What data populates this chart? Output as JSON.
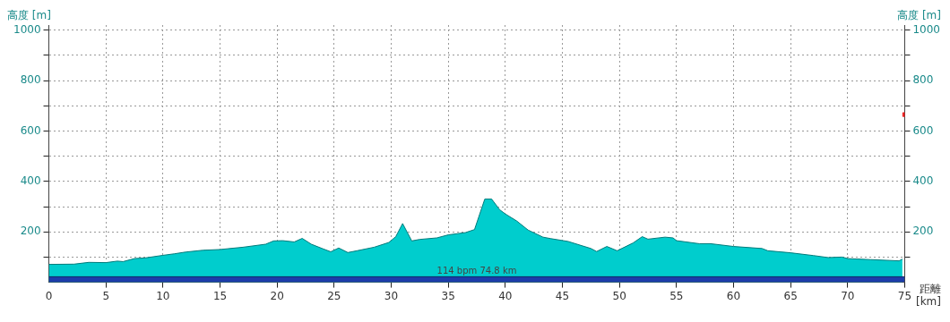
{
  "chart_data": {
    "type": "area",
    "xlabel": "距離 [km]",
    "ylabel": "高度 [m]",
    "y2label": "高度 [m]",
    "annotations": [
      "114 bpm 74.8 km"
    ],
    "xlim": [
      0,
      75
    ],
    "xticks": [
      0,
      5,
      10,
      15,
      20,
      25,
      30,
      35,
      40,
      45,
      50,
      55,
      60,
      65,
      70,
      75
    ],
    "ylim": [
      0,
      1020
    ],
    "yticks": [
      {
        "value": 0,
        "label": null
      },
      {
        "value": 100,
        "label": null
      },
      200,
      {
        "value": 300,
        "label": null
      },
      400,
      {
        "value": 500,
        "label": null
      },
      600,
      {
        "value": 700,
        "label": null
      },
      800,
      {
        "value": 900,
        "label": null
      },
      1000
    ],
    "y2lim": [
      0,
      1020
    ],
    "y2ticks": [
      {
        "value": 0,
        "label": null
      },
      {
        "value": 100,
        "label": null
      },
      200,
      {
        "value": 300,
        "label": null
      },
      400,
      {
        "value": 500,
        "label": null
      },
      600,
      {
        "value": 700,
        "label": null
      },
      800,
      {
        "value": 900,
        "label": null
      },
      1000
    ],
    "grid": true,
    "series": [
      {
        "color": "#00cdcd",
        "x": [
          0,
          2.2,
          3.5,
          5,
          6,
          6.5,
          7.5,
          8.5,
          10,
          11,
          12,
          13.5,
          15,
          17,
          19,
          19.7,
          20.5,
          21.5,
          22.2,
          23,
          24,
          24.7,
          25.4,
          26.2,
          27,
          28.5,
          29.8,
          30.4,
          31,
          31.8,
          32.5,
          34,
          35,
          36.5,
          37.3,
          38.2,
          38.8,
          39.5,
          40,
          41,
          42,
          43.3,
          44,
          45.5,
          47.5,
          48,
          48.9,
          49.8,
          51.2,
          52,
          52.5,
          54,
          54.7,
          55,
          57,
          58,
          60,
          62.5,
          63,
          65,
          67,
          68.3,
          69.5,
          70,
          72,
          74.5,
          74.8
        ],
        "values": [
          71,
          72,
          79,
          78,
          84,
          82,
          94,
          97,
          107,
          113,
          120,
          127,
          130,
          139,
          151,
          164,
          165,
          160,
          174,
          151,
          133,
          121,
          136,
          118,
          125,
          139,
          158,
          181,
          233,
          164,
          170,
          176,
          188,
          197,
          209,
          330,
          330,
          288,
          271,
          243,
          207,
          179,
          173,
          162,
          134,
          122,
          142,
          125,
          156,
          181,
          171,
          179,
          176,
          165,
          153,
          153,
          142,
          134,
          125,
          117,
          106,
          98,
          100,
          94,
          90,
          85,
          92
        ]
      },
      {
        "type": "area",
        "color": "#1c3caa",
        "x": [
          0,
          75
        ],
        "values": [
          22,
          22
        ]
      },
      {
        "type": "scatter",
        "color": "#ee2222",
        "marker": "square",
        "x": [
          75
        ],
        "values": [
          665
        ]
      }
    ]
  }
}
